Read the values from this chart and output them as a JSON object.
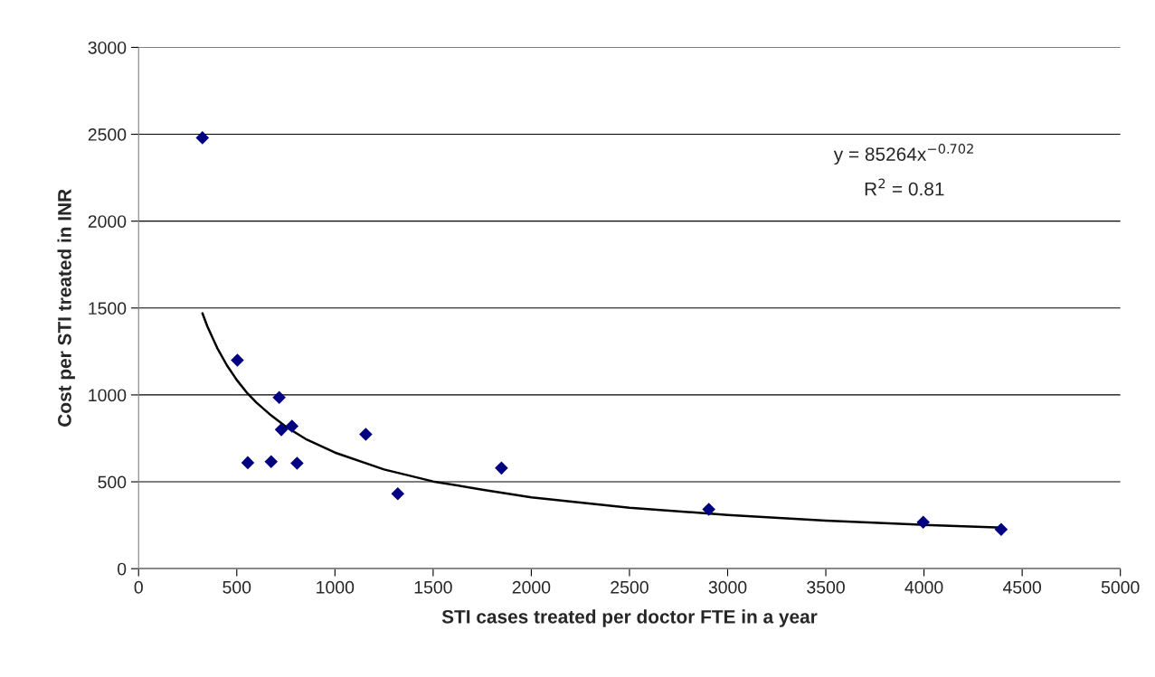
{
  "chart_data": {
    "type": "scatter",
    "xlabel": "STI cases treated per doctor FTE in a year",
    "ylabel": "Cost per STI treated in INR",
    "x": [
      325,
      503,
      556,
      675,
      716,
      727,
      781,
      807,
      1157,
      1320,
      1848,
      2904,
      3996,
      4393
    ],
    "series": [
      {
        "color": "#000080",
        "marker": "diamond",
        "values": [
          2480,
          1200,
          610,
          616,
          985,
          800,
          820,
          607,
          773,
          431,
          579,
          342,
          267,
          226
        ]
      },
      {
        "type": "line",
        "color": "#000000",
        "line_style": "solid",
        "marker": "none",
        "x": [
          325,
          350,
          400,
          450,
          500,
          550,
          600,
          675,
          750,
          850,
          1000,
          1250,
          1500,
          1750,
          2000,
          2500,
          3000,
          3500,
          4000,
          4400
        ],
        "values": [
          1470,
          1395,
          1271,
          1170,
          1086,
          1015,
          956,
          882,
          817,
          747,
          668,
          571,
          502,
          455,
          411,
          351,
          309,
          277,
          252,
          236
        ]
      }
    ],
    "annotations": [
      "y = 85264x$^{−0.702}$",
      "R$^{2}$ = 0.81"
    ],
    "xlim": [
      0,
      5000
    ],
    "xticks": [
      0,
      500,
      1000,
      1500,
      2000,
      2500,
      3000,
      3500,
      4000,
      4500,
      5000
    ],
    "ylim": [
      0,
      3000
    ],
    "yticks": [
      0,
      500,
      1000,
      1500,
      2000,
      2500,
      3000
    ],
    "grid": "y",
    "legend": false
  }
}
